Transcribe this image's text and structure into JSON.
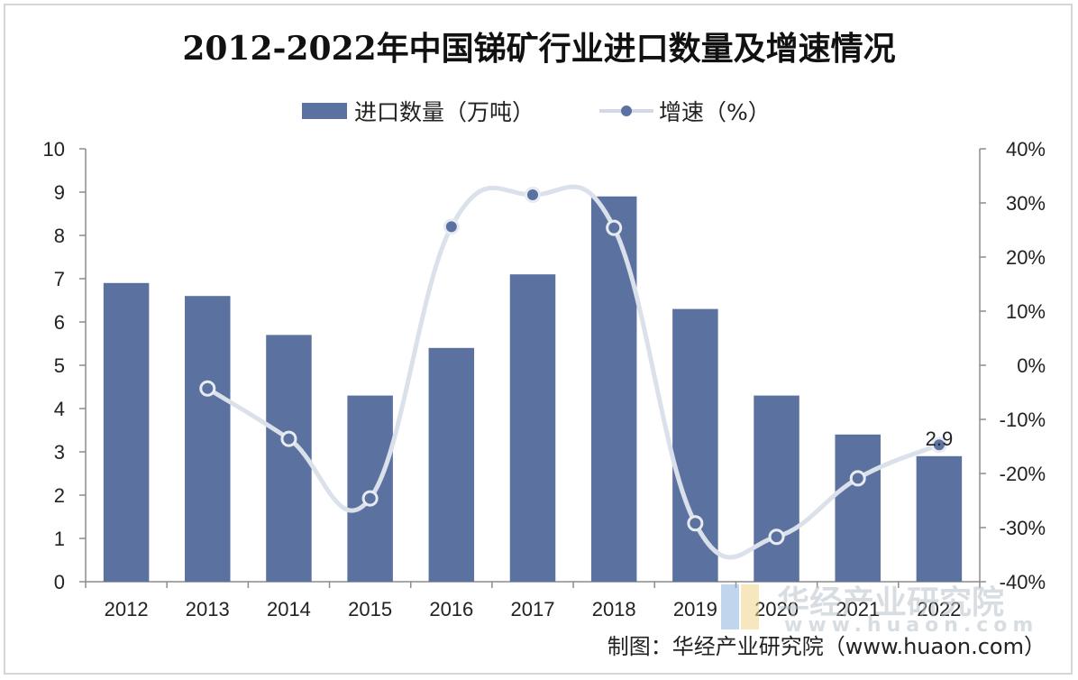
{
  "chart_data": {
    "type": "bar+line",
    "title": "2012-2022年中国锑矿行业进口数量及增速情况",
    "categories": [
      "2012",
      "2013",
      "2014",
      "2015",
      "2016",
      "2017",
      "2018",
      "2019",
      "2020",
      "2021",
      "2022"
    ],
    "series": [
      {
        "name": "进口数量（万吨）",
        "type": "bar",
        "axis": "left",
        "color": "#5b72a0",
        "values": [
          6.9,
          6.6,
          5.7,
          4.3,
          5.4,
          7.1,
          8.9,
          6.3,
          4.3,
          3.4,
          2.9
        ]
      },
      {
        "name": "增速（%）",
        "type": "line",
        "axis": "right",
        "line_color": "#dbe1ea",
        "marker_color": "#5b72a0",
        "values": [
          null,
          -4.3,
          -13.6,
          -24.6,
          25.6,
          31.5,
          25.4,
          -29.2,
          -31.7,
          -20.9,
          -14.7
        ]
      }
    ],
    "left_axis": {
      "ylim": [
        0,
        10
      ],
      "ticks": [
        "0",
        "1",
        "2",
        "3",
        "4",
        "5",
        "6",
        "7",
        "8",
        "9",
        "10"
      ]
    },
    "right_axis": {
      "ylim": [
        -40,
        40
      ],
      "ticks": [
        "-40%",
        "-30%",
        "-20%",
        "-10%",
        "0%",
        "10%",
        "20%",
        "30%",
        "40%"
      ]
    },
    "data_labels": [
      {
        "category": "2022",
        "text": "2.9"
      }
    ],
    "legend_position": "top-center",
    "grid": false
  },
  "source": "制图：华经产业研究院（www.huaon.com）",
  "watermark": {
    "name": "华经产业研究院",
    "url": "www.huaon.com"
  }
}
